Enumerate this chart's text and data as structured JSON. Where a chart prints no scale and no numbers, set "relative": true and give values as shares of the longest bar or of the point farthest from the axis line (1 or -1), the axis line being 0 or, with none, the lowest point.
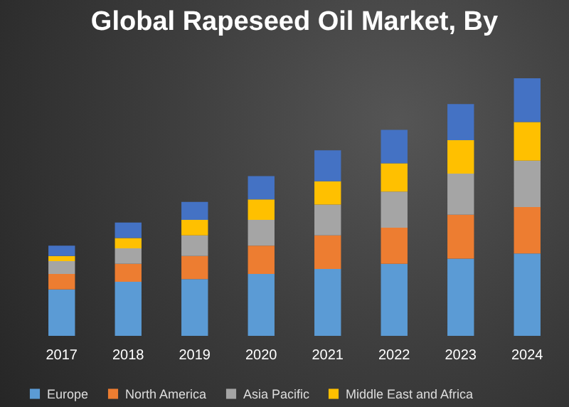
{
  "chart_data": {
    "type": "bar",
    "title": "Global Rapeseed Oil Market, By",
    "categories": [
      "2017",
      "2018",
      "2019",
      "2020",
      "2021",
      "2022",
      "2023",
      "2024"
    ],
    "stacked": true,
    "relative": true,
    "legend": "bottom",
    "series": [
      {
        "name": "Europe",
        "color": "#5b9bd5",
        "values": [
          0.18,
          0.21,
          0.22,
          0.24,
          0.26,
          0.28,
          0.3,
          0.32
        ]
      },
      {
        "name": "North America",
        "color": "#ed7d31",
        "values": [
          0.06,
          0.07,
          0.09,
          0.11,
          0.13,
          0.14,
          0.17,
          0.18
        ]
      },
      {
        "name": "Asia Pacific",
        "color": "#a5a5a5",
        "values": [
          0.05,
          0.06,
          0.08,
          0.1,
          0.12,
          0.14,
          0.16,
          0.18
        ]
      },
      {
        "name": "Middle East and Africa",
        "color": "#ffc000",
        "values": [
          0.02,
          0.04,
          0.06,
          0.08,
          0.09,
          0.11,
          0.13,
          0.15
        ]
      },
      {
        "color": "#4472c4",
        "values": [
          0.04,
          0.06,
          0.07,
          0.09,
          0.12,
          0.13,
          0.14,
          0.17
        ]
      }
    ]
  }
}
